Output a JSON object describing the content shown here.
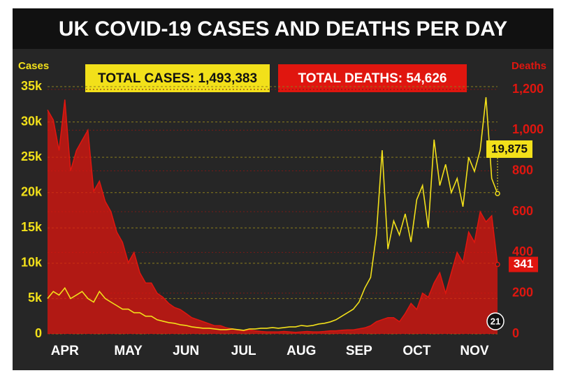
{
  "chart_data": {
    "type": "line",
    "title": "UK COVID-19 CASES AND DEATHS PER DAY",
    "annotations": [
      "TOTAL CASES: 1,493,383",
      "TOTAL DEATHS: 54,626"
    ],
    "badge": "21",
    "categories": [
      null,
      null,
      null,
      "APR",
      null,
      null,
      null,
      null,
      null,
      null,
      null,
      null,
      null,
      null,
      "MAY",
      null,
      null,
      null,
      null,
      null,
      null,
      null,
      null,
      null,
      "JUN",
      null,
      null,
      null,
      null,
      null,
      null,
      null,
      null,
      null,
      "JUL",
      null,
      null,
      null,
      null,
      null,
      null,
      null,
      null,
      null,
      "AUG",
      null,
      null,
      null,
      null,
      null,
      null,
      null,
      null,
      null,
      "SEP",
      null,
      null,
      null,
      null,
      null,
      null,
      null,
      null,
      null,
      "OCT",
      null,
      null,
      null,
      null,
      null,
      null,
      null,
      null,
      null,
      "NOV",
      null,
      null,
      null,
      null
    ],
    "series": [
      {
        "name": "Cases",
        "color": "#f2e01a",
        "values": [
          5000,
          6000,
          5500,
          6500,
          5000,
          5500,
          6000,
          5000,
          4500,
          6000,
          5000,
          4500,
          4000,
          3500,
          3500,
          3000,
          3000,
          2500,
          2500,
          2000,
          1800,
          1600,
          1500,
          1300,
          1200,
          1000,
          900,
          800,
          800,
          700,
          600,
          600,
          700,
          600,
          500,
          700,
          700,
          800,
          800,
          900,
          800,
          900,
          1000,
          1000,
          1200,
          1100,
          1200,
          1400,
          1500,
          1700,
          2000,
          2500,
          3000,
          3500,
          4500,
          6500,
          8000,
          14000,
          26000,
          12000,
          16000,
          14000,
          17000,
          13000,
          19000,
          21000,
          15000,
          27500,
          21000,
          24000,
          20000,
          22000,
          18000,
          25000,
          23000,
          26000,
          33500,
          22000,
          19875
        ],
        "value_labels": [
          null,
          null,
          null,
          null,
          null,
          null,
          null,
          null,
          null,
          null,
          null,
          null,
          null,
          null,
          null,
          null,
          null,
          null,
          null,
          null,
          null,
          null,
          null,
          null,
          null,
          null,
          null,
          null,
          null,
          null,
          null,
          null,
          null,
          null,
          null,
          null,
          null,
          null,
          null,
          null,
          null,
          null,
          null,
          null,
          null,
          null,
          null,
          null,
          null,
          null,
          null,
          null,
          null,
          null,
          null,
          null,
          null,
          null,
          null,
          null,
          null,
          null,
          null,
          null,
          null,
          null,
          null,
          null,
          null,
          null,
          null,
          null,
          null,
          null,
          null,
          null,
          null,
          null,
          "19,875"
        ]
      },
      {
        "name": "Deaths",
        "color": "#e0160f",
        "axis": "y2",
        "values": [
          1100,
          1050,
          900,
          1150,
          800,
          900,
          950,
          1000,
          700,
          750,
          650,
          600,
          500,
          450,
          350,
          400,
          300,
          250,
          250,
          200,
          180,
          150,
          130,
          120,
          100,
          80,
          70,
          60,
          50,
          40,
          40,
          30,
          25,
          20,
          15,
          20,
          15,
          12,
          10,
          10,
          10,
          12,
          10,
          8,
          10,
          12,
          10,
          10,
          12,
          15,
          15,
          18,
          20,
          20,
          25,
          30,
          40,
          60,
          70,
          80,
          80,
          60,
          100,
          150,
          120,
          200,
          180,
          250,
          300,
          200,
          300,
          400,
          350,
          500,
          450,
          600,
          550,
          580,
          341
        ],
        "value_labels": [
          null,
          null,
          null,
          null,
          null,
          null,
          null,
          null,
          null,
          null,
          null,
          null,
          null,
          null,
          null,
          null,
          null,
          null,
          null,
          null,
          null,
          null,
          null,
          null,
          null,
          null,
          null,
          null,
          null,
          null,
          null,
          null,
          null,
          null,
          null,
          null,
          null,
          null,
          null,
          null,
          null,
          null,
          null,
          null,
          null,
          null,
          null,
          null,
          null,
          null,
          null,
          null,
          null,
          null,
          null,
          null,
          null,
          null,
          null,
          null,
          null,
          null,
          null,
          null,
          null,
          null,
          null,
          null,
          null,
          null,
          null,
          null,
          null,
          null,
          null,
          null,
          null,
          null,
          "341"
        ]
      }
    ],
    "ylim": [
      0,
      35000
    ],
    "yticks": [
      0,
      {
        "value": 5000,
        "label": "5k"
      },
      {
        "value": 10000,
        "label": "10k"
      },
      {
        "value": 15000,
        "label": "15k"
      },
      {
        "value": 20000,
        "label": "20k"
      },
      {
        "value": 25000,
        "label": "25k"
      },
      {
        "value": 30000,
        "label": "30k"
      },
      {
        "value": 35000,
        "label": "35k"
      }
    ],
    "y2lim": [
      0,
      1200
    ],
    "y2ticks": [
      0,
      200,
      400,
      600,
      800,
      {
        "value": 1000,
        "label": "1,000"
      },
      {
        "value": 1200,
        "label": "1,200"
      }
    ],
    "grid": true
  }
}
